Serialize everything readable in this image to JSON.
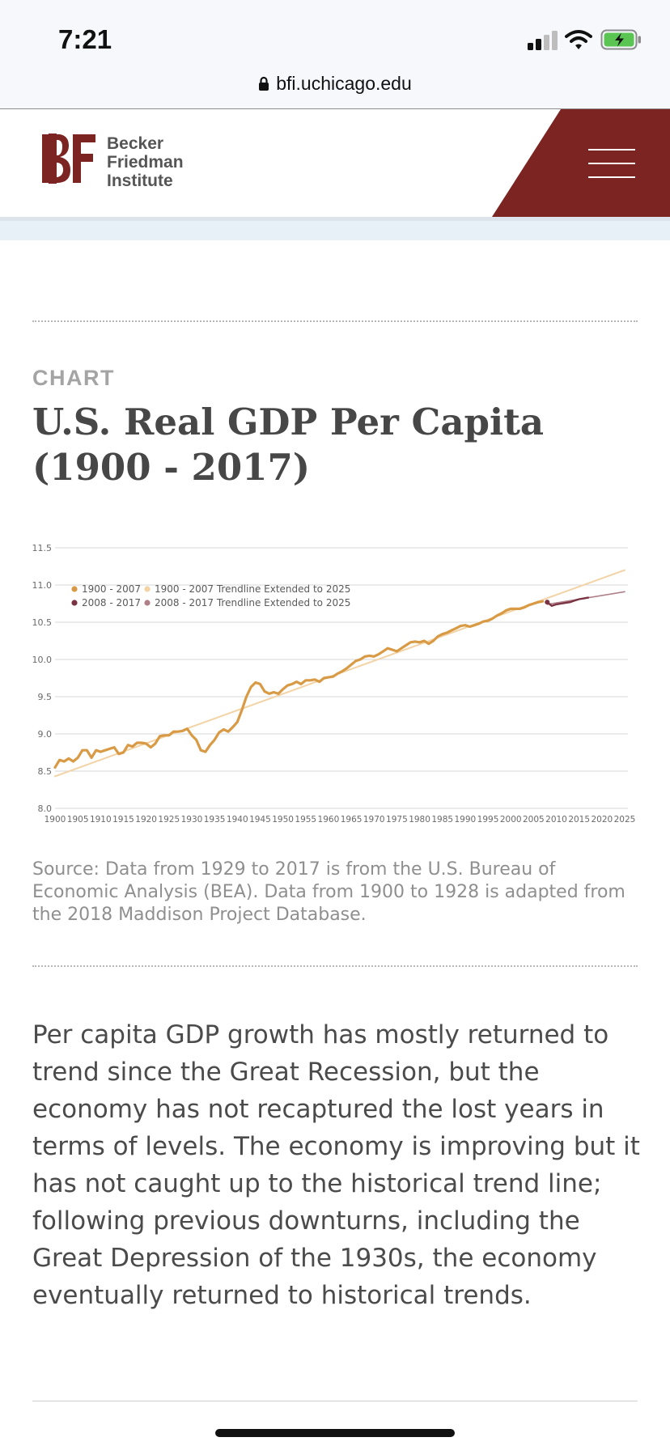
{
  "status_bar": {
    "time": "7:21"
  },
  "browser": {
    "url": "bfi.uchicago.edu"
  },
  "header": {
    "logo_mark": "BF",
    "logo_lines": [
      "Becker",
      "Friedman",
      "Institute"
    ],
    "brand_color": "#7c2421",
    "menu_icon": "hamburger-menu-icon"
  },
  "article": {
    "kicker": "CHART",
    "title": "U.S. Real GDP Per Capita (1900 - 2017)",
    "source": "Source: Data from 1929 to 2017 is from the U.S. Bureau of Economic Analysis (BEA). Data from 1900 to 1928 is adapted from the 2018 Maddison Project Database.",
    "body": "Per capita GDP growth has mostly returned to trend since the Great Recession, but the economy has not recaptured the lost years in terms of levels. The economy is improving but it has not caught up to the historical trend line; following previous downturns, including the Great Depression of the 1930s, the economy eventually returned to historical trends."
  },
  "chart_data": {
    "type": "line",
    "xlim": [
      1900,
      2025
    ],
    "ylim": [
      8.0,
      11.5
    ],
    "x_ticks": [
      "1900",
      "1905",
      "1910",
      "1915",
      "1920",
      "1925",
      "1930",
      "1935",
      "1940",
      "1945",
      "1950",
      "1955",
      "1960",
      "1965",
      "1970",
      "1975",
      "1980",
      "1985",
      "1990",
      "1995",
      "2000",
      "2005",
      "2010",
      "2015",
      "2020",
      "2025"
    ],
    "y_ticks": [
      "8.0",
      "8.5",
      "9.0",
      "9.5",
      "10.0",
      "10.5",
      "11.0",
      "11.5"
    ],
    "grid": "horizontal",
    "legend_position": "top-left",
    "legend": [
      {
        "label": "1900 - 2007",
        "color": "#d99a45"
      },
      {
        "label": "1900 - 2007 Trendline Extended to 2025",
        "color": "#f3d3a5"
      },
      {
        "label": "2008 - 2017",
        "color": "#7a3342"
      },
      {
        "label": "2008 - 2017 Trendline Extended to 2025",
        "color": "#b07f88"
      }
    ],
    "series": [
      {
        "name": "1900 - 2007",
        "color": "#d99a45",
        "points": [
          [
            1900,
            8.55
          ],
          [
            1901,
            8.65
          ],
          [
            1902,
            8.63
          ],
          [
            1903,
            8.67
          ],
          [
            1904,
            8.63
          ],
          [
            1905,
            8.68
          ],
          [
            1906,
            8.78
          ],
          [
            1907,
            8.78
          ],
          [
            1908,
            8.68
          ],
          [
            1909,
            8.78
          ],
          [
            1910,
            8.76
          ],
          [
            1911,
            8.78
          ],
          [
            1912,
            8.8
          ],
          [
            1913,
            8.82
          ],
          [
            1914,
            8.73
          ],
          [
            1915,
            8.75
          ],
          [
            1916,
            8.85
          ],
          [
            1917,
            8.83
          ],
          [
            1918,
            8.88
          ],
          [
            1919,
            8.88
          ],
          [
            1920,
            8.87
          ],
          [
            1921,
            8.82
          ],
          [
            1922,
            8.87
          ],
          [
            1923,
            8.97
          ],
          [
            1924,
            8.98
          ],
          [
            1925,
            8.98
          ],
          [
            1926,
            9.03
          ],
          [
            1927,
            9.03
          ],
          [
            1928,
            9.04
          ],
          [
            1929,
            9.07
          ],
          [
            1930,
            8.98
          ],
          [
            1931,
            8.92
          ],
          [
            1932,
            8.78
          ],
          [
            1933,
            8.76
          ],
          [
            1934,
            8.85
          ],
          [
            1935,
            8.92
          ],
          [
            1936,
            9.02
          ],
          [
            1937,
            9.06
          ],
          [
            1938,
            9.03
          ],
          [
            1939,
            9.09
          ],
          [
            1940,
            9.16
          ],
          [
            1941,
            9.32
          ],
          [
            1942,
            9.5
          ],
          [
            1943,
            9.63
          ],
          [
            1944,
            9.69
          ],
          [
            1945,
            9.67
          ],
          [
            1946,
            9.57
          ],
          [
            1947,
            9.54
          ],
          [
            1948,
            9.56
          ],
          [
            1949,
            9.54
          ],
          [
            1950,
            9.6
          ],
          [
            1951,
            9.65
          ],
          [
            1952,
            9.67
          ],
          [
            1953,
            9.7
          ],
          [
            1954,
            9.67
          ],
          [
            1955,
            9.72
          ],
          [
            1956,
            9.72
          ],
          [
            1957,
            9.73
          ],
          [
            1958,
            9.7
          ],
          [
            1959,
            9.75
          ],
          [
            1960,
            9.76
          ],
          [
            1961,
            9.77
          ],
          [
            1962,
            9.81
          ],
          [
            1963,
            9.84
          ],
          [
            1964,
            9.88
          ],
          [
            1965,
            9.93
          ],
          [
            1966,
            9.98
          ],
          [
            1967,
            10.0
          ],
          [
            1968,
            10.04
          ],
          [
            1969,
            10.05
          ],
          [
            1970,
            10.04
          ],
          [
            1971,
            10.07
          ],
          [
            1972,
            10.11
          ],
          [
            1973,
            10.15
          ],
          [
            1974,
            10.13
          ],
          [
            1975,
            10.11
          ],
          [
            1976,
            10.15
          ],
          [
            1977,
            10.19
          ],
          [
            1978,
            10.23
          ],
          [
            1979,
            10.24
          ],
          [
            1980,
            10.23
          ],
          [
            1981,
            10.25
          ],
          [
            1982,
            10.21
          ],
          [
            1983,
            10.25
          ],
          [
            1984,
            10.31
          ],
          [
            1985,
            10.34
          ],
          [
            1986,
            10.36
          ],
          [
            1987,
            10.39
          ],
          [
            1988,
            10.42
          ],
          [
            1989,
            10.45
          ],
          [
            1990,
            10.46
          ],
          [
            1991,
            10.44
          ],
          [
            1992,
            10.46
          ],
          [
            1993,
            10.48
          ],
          [
            1994,
            10.51
          ],
          [
            1995,
            10.52
          ],
          [
            1996,
            10.55
          ],
          [
            1997,
            10.59
          ],
          [
            1998,
            10.62
          ],
          [
            1999,
            10.66
          ],
          [
            2000,
            10.68
          ],
          [
            2001,
            10.68
          ],
          [
            2002,
            10.68
          ],
          [
            2003,
            10.7
          ],
          [
            2004,
            10.73
          ],
          [
            2005,
            10.75
          ],
          [
            2006,
            10.77
          ],
          [
            2007,
            10.78
          ]
        ]
      },
      {
        "name": "1900 - 2007 Trendline Extended to 2025",
        "color": "#f3d3a5",
        "points": [
          [
            1900,
            8.43
          ],
          [
            2025,
            11.2
          ]
        ]
      },
      {
        "name": "2008 - 2017",
        "color": "#7a3342",
        "points": [
          [
            2008,
            10.77
          ],
          [
            2009,
            10.72
          ],
          [
            2010,
            10.74
          ],
          [
            2011,
            10.75
          ],
          [
            2012,
            10.76
          ],
          [
            2013,
            10.77
          ],
          [
            2014,
            10.79
          ],
          [
            2015,
            10.81
          ],
          [
            2016,
            10.82
          ],
          [
            2017,
            10.83
          ]
        ]
      },
      {
        "name": "2008 - 2017 Trendline Extended to 2025",
        "color": "#b07f88",
        "points": [
          [
            2008,
            10.74
          ],
          [
            2025,
            10.91
          ]
        ]
      }
    ]
  }
}
